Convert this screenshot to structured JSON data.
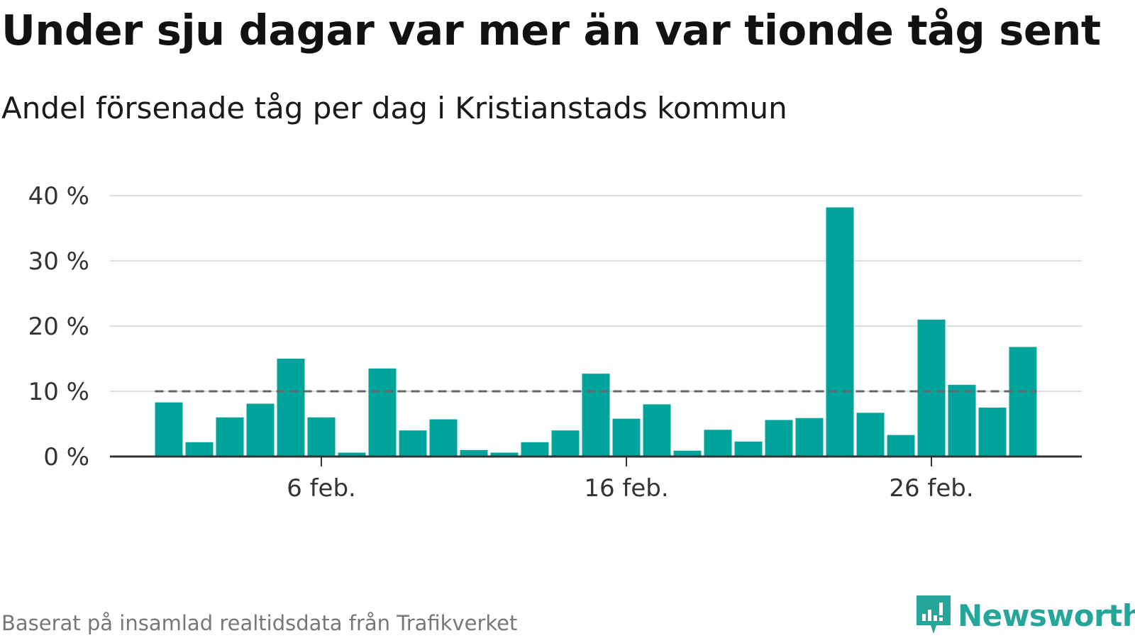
{
  "title": "Under sju dagar var mer än var tionde tåg sent",
  "subtitle": "Andel försenade tåg per dag i Kristianstads kommun",
  "footer": "Baserat på insamlad realtidsdata från Trafikverket",
  "brand": {
    "name": "Newsworthy",
    "icon": "newsworthy-logo-icon",
    "color": "#26a69a"
  },
  "colors": {
    "bar": "#00a49a",
    "reference_line": "#666670",
    "grid": "#dddddd",
    "axis": "#333333"
  },
  "chart_data": {
    "type": "bar",
    "title": "Under sju dagar var mer än var tionde tåg sent",
    "subtitle": "Andel försenade tåg per dag i Kristianstads kommun",
    "xlabel": "",
    "ylabel": "",
    "x_type": "date",
    "categories": [
      "1 feb.",
      "2 feb.",
      "3 feb.",
      "4 feb.",
      "5 feb.",
      "6 feb.",
      "7 feb.",
      "8 feb.",
      "9 feb.",
      "10 feb.",
      "11 feb.",
      "12 feb.",
      "13 feb.",
      "14 feb.",
      "15 feb.",
      "16 feb.",
      "17 feb.",
      "18 feb.",
      "19 feb.",
      "20 feb.",
      "21 feb.",
      "22 feb.",
      "23 feb.",
      "24 feb.",
      "25 feb.",
      "26 feb.",
      "27 feb.",
      "28 feb.",
      "29 feb."
    ],
    "values": [
      8.3,
      2.2,
      6.0,
      8.1,
      15.0,
      6.0,
      0.6,
      13.5,
      4.0,
      5.7,
      1.0,
      0.6,
      2.2,
      4.0,
      12.7,
      5.8,
      8.0,
      0.9,
      4.1,
      2.3,
      5.6,
      5.9,
      38.2,
      6.7,
      3.3,
      21.0,
      11.0,
      7.5,
      16.8
    ],
    "x_ticks": [
      {
        "label": "6 feb.",
        "index": 5
      },
      {
        "label": "16 feb.",
        "index": 15
      },
      {
        "label": "26 feb.",
        "index": 25
      }
    ],
    "y_ticks": [
      {
        "value": 0,
        "label": "0 %"
      },
      {
        "value": 10,
        "label": "10 %"
      },
      {
        "value": 20,
        "label": "20 %"
      },
      {
        "value": 30,
        "label": "30 %"
      },
      {
        "value": 40,
        "label": "40 %"
      }
    ],
    "ylim": [
      0,
      40
    ],
    "reference_line": {
      "value": 10,
      "style": "dashed"
    },
    "grid": true,
    "legend": "none"
  }
}
